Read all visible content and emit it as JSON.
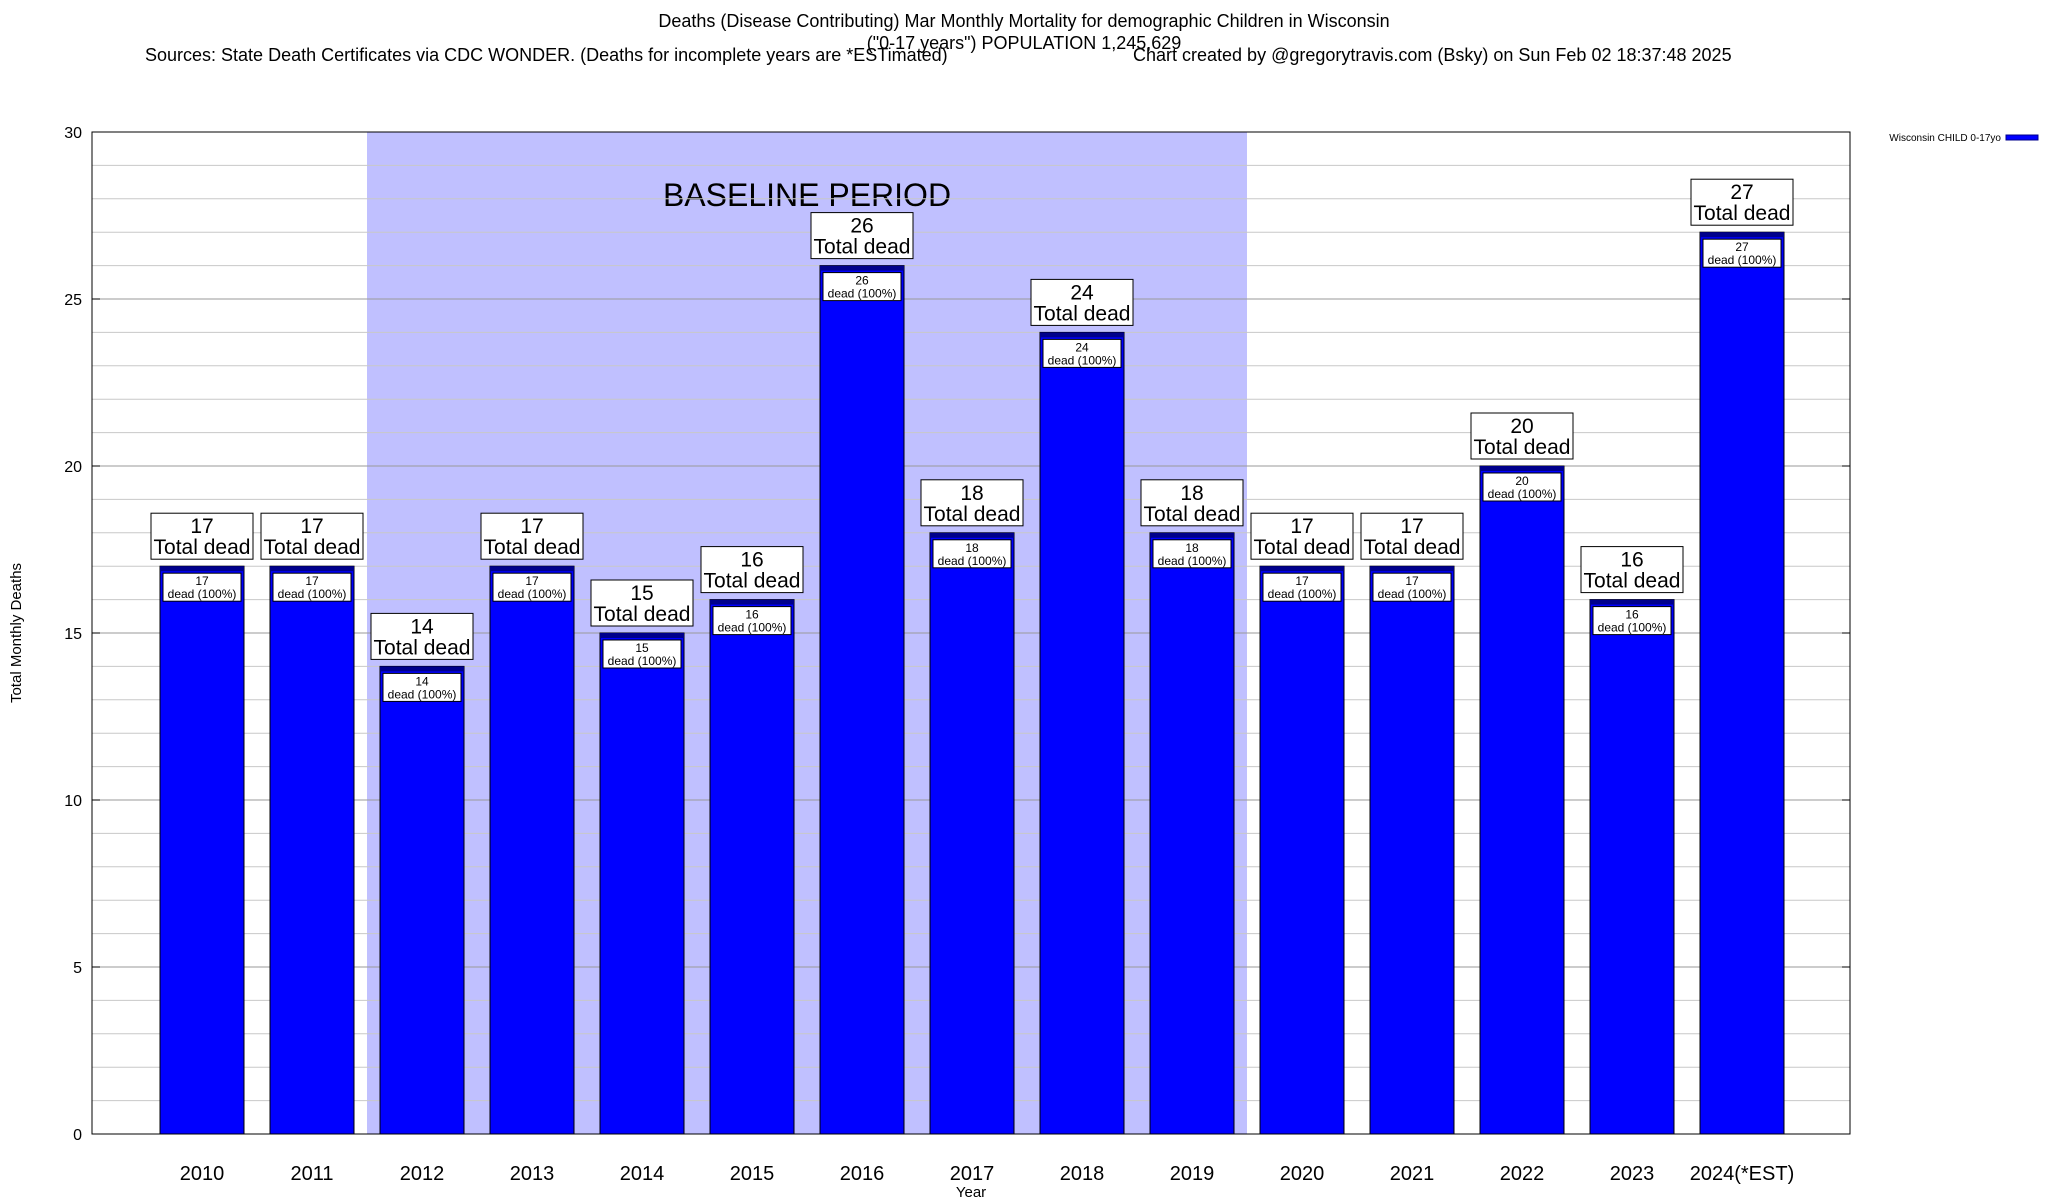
{
  "header": {
    "title_line1": "Deaths (Disease Contributing) Mar Monthly Mortality for demographic Children in Wisconsin",
    "title_line2": "(\"0-17 years\") POPULATION 1,245,629",
    "sources": "Sources: State Death Certificates via CDC WONDER. (Deaths for incomplete years are *ESTimated)",
    "credit": "Chart created by @gregorytravis.com (Bsky) on Sun Feb 02 18:37:48 2025"
  },
  "chart_data": {
    "type": "bar",
    "xlabel": "Year",
    "ylabel": "Total Monthly Deaths",
    "ylim": [
      0,
      30
    ],
    "yticks": [
      0,
      5,
      10,
      15,
      20,
      25,
      30
    ],
    "grid": true,
    "legend_position": "top-right",
    "categories": [
      "2010",
      "2011",
      "2012",
      "2013",
      "2014",
      "2015",
      "2016",
      "2017",
      "2018",
      "2019",
      "2020",
      "2021",
      "2022",
      "2023",
      "2024(*EST)"
    ],
    "series": [
      {
        "name": "Wisconsin CHILD 0-17yo",
        "color": "#0000ff",
        "values": [
          17,
          17,
          14,
          17,
          15,
          16,
          26,
          18,
          24,
          18,
          17,
          17,
          20,
          16,
          27
        ]
      }
    ],
    "total_label_suffix": "Total dead",
    "bar_label_suffix": "dead (100%)",
    "baseline": {
      "label": "BASELINE PERIOD",
      "from": "2012",
      "to": "2019",
      "color": "#c0c0ff"
    }
  }
}
